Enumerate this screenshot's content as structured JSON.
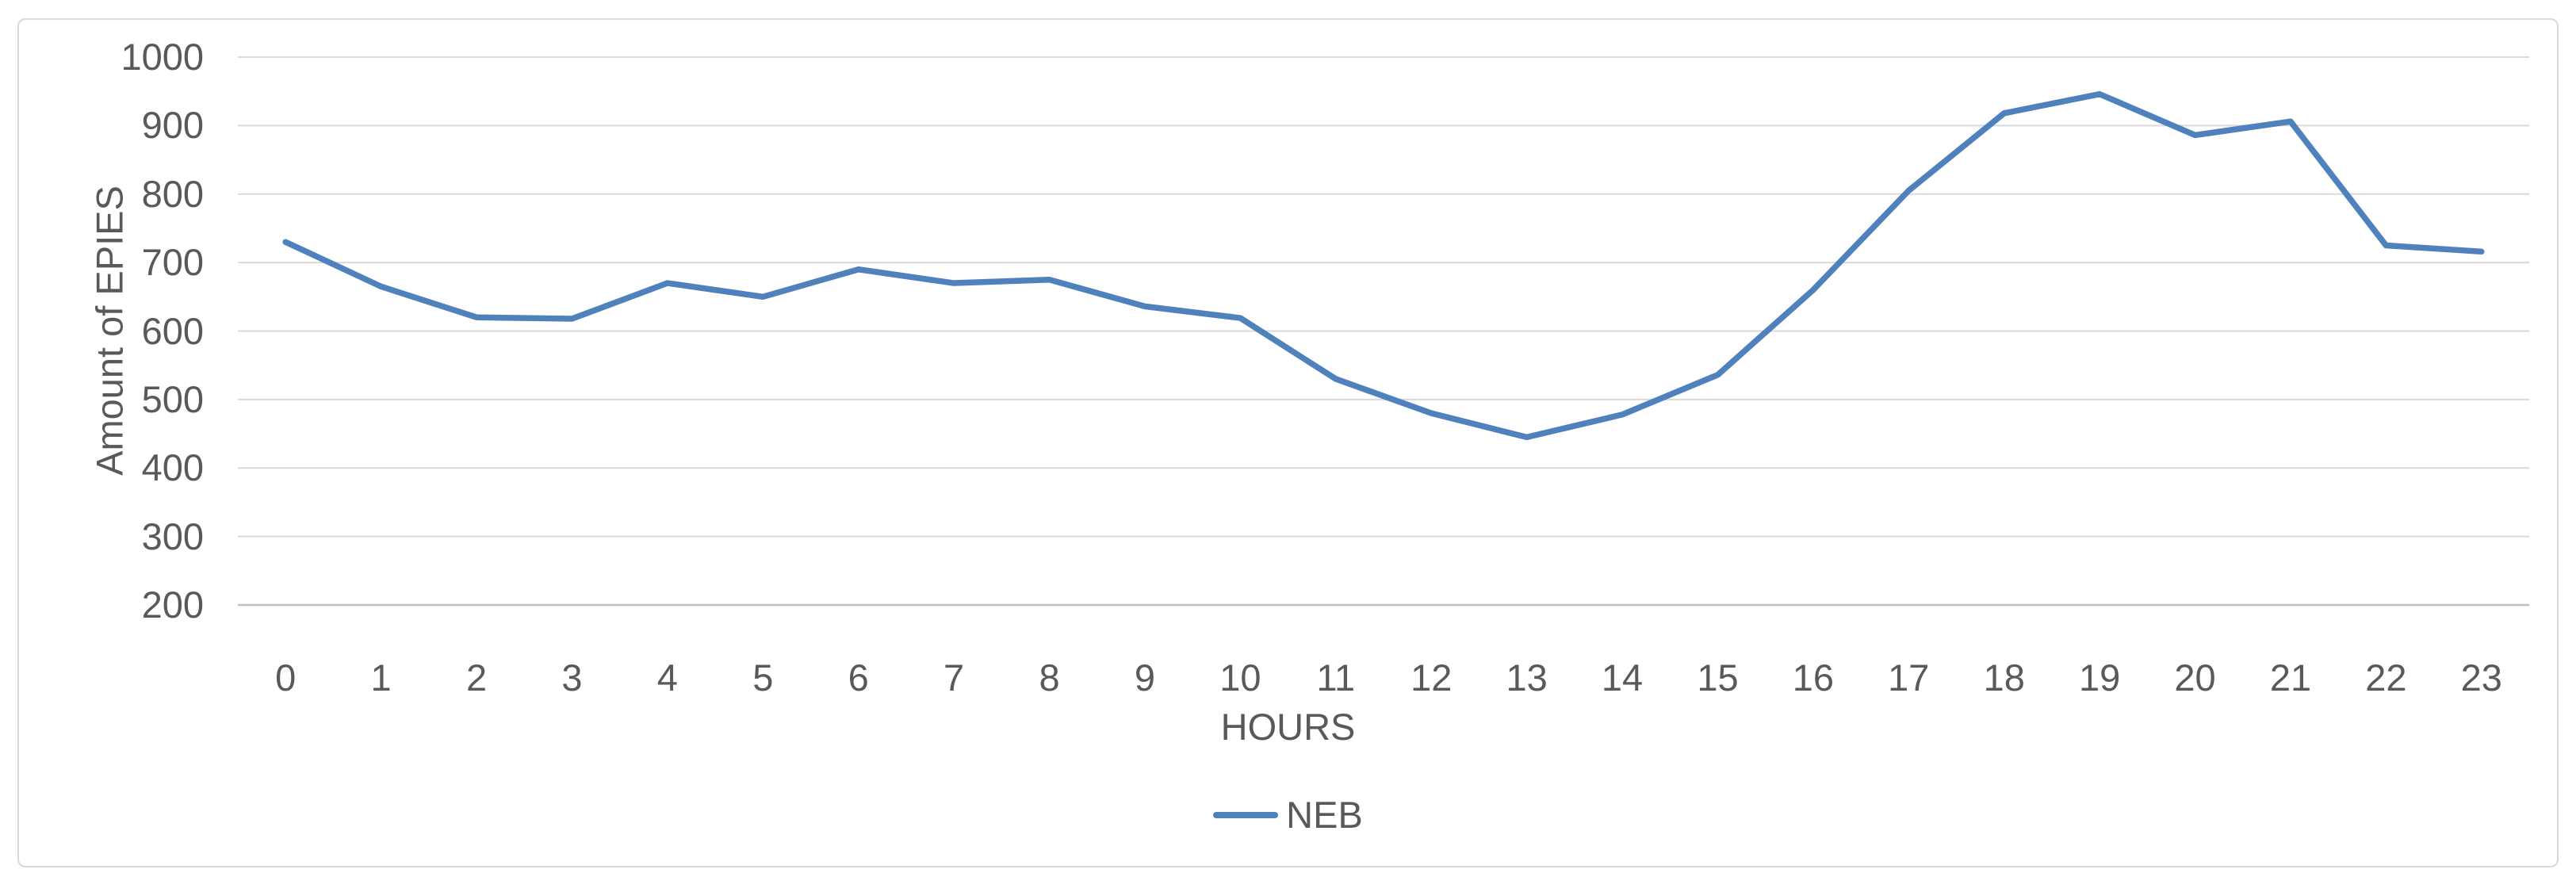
{
  "chart_data": {
    "type": "line",
    "title": "",
    "xlabel": "HOURS",
    "ylabel": "Amount of EPIES",
    "categories": [
      "0",
      "1",
      "2",
      "3",
      "4",
      "5",
      "6",
      "7",
      "8",
      "9",
      "10",
      "11",
      "12",
      "13",
      "14",
      "15",
      "16",
      "17",
      "18",
      "19",
      "20",
      "21",
      "22",
      "23"
    ],
    "series": [
      {
        "name": "NEB",
        "values": [
          730,
          665,
          620,
          618,
          670,
          650,
          690,
          670,
          675,
          636,
          619,
          530,
          480,
          445,
          478,
          536,
          660,
          805,
          918,
          946,
          886,
          906,
          725,
          716
        ]
      }
    ],
    "ylim": [
      200,
      1000
    ],
    "yticks": [
      1000,
      900,
      800,
      700,
      600,
      500,
      400,
      300,
      200
    ],
    "grid": "horizontal-only",
    "legend_position": "bottom-center"
  },
  "colors": {
    "series_line": "#4F81BD",
    "gridline": "#D9D9D9",
    "axis_line": "#BFBFBF",
    "label_text": "#595959",
    "chart_border": "#D9D9D9",
    "background": "#FFFFFF"
  }
}
